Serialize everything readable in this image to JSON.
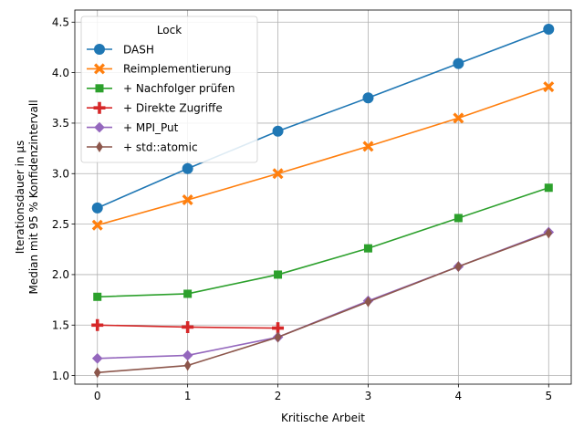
{
  "chart_data": {
    "type": "line",
    "title": "",
    "xlabel": "Kritische Arbeit",
    "ylabel_lines": [
      "Iterationsdauer in µs",
      "Median mit 95 % Konfidenzintervall"
    ],
    "xlim": [
      -0.25,
      5.25
    ],
    "ylim": [
      0.915,
      4.62
    ],
    "xticks": [
      0,
      1,
      2,
      3,
      4,
      5
    ],
    "yticks": [
      1.0,
      1.5,
      2.0,
      2.5,
      3.0,
      3.5,
      4.0,
      4.5
    ],
    "ytick_labels": [
      "1.0",
      "1.5",
      "2.0",
      "2.5",
      "3.0",
      "3.5",
      "4.0",
      "4.5"
    ],
    "grid": true,
    "legend": {
      "title": "Lock",
      "position": "top-left"
    },
    "series": [
      {
        "name": "DASH",
        "color": "#1f77b4",
        "marker": "circle",
        "x": [
          0,
          1,
          2,
          3,
          4,
          5
        ],
        "y": [
          2.66,
          3.05,
          3.42,
          3.75,
          4.09,
          4.43
        ]
      },
      {
        "name": "Reimplementierung",
        "color": "#ff7f0e",
        "marker": "x",
        "x": [
          0,
          1,
          2,
          3,
          4,
          5
        ],
        "y": [
          2.49,
          2.74,
          3.0,
          3.27,
          3.55,
          3.86
        ]
      },
      {
        "name": "+ Nachfolger prüfen",
        "color": "#2ca02c",
        "marker": "square",
        "x": [
          0,
          1,
          2,
          3,
          4,
          5
        ],
        "y": [
          1.78,
          1.81,
          2.0,
          2.26,
          2.56,
          2.86
        ]
      },
      {
        "name": "+ Direkte Zugriffe",
        "color": "#d62728",
        "marker": "plus",
        "x": [
          0,
          1,
          2
        ],
        "y": [
          1.5,
          1.48,
          1.47
        ]
      },
      {
        "name": "+ MPI_Put",
        "color": "#9467bd",
        "marker": "diamond",
        "x": [
          0,
          1,
          2,
          3,
          4,
          5
        ],
        "y": [
          1.17,
          1.2,
          1.38,
          1.74,
          2.08,
          2.42
        ]
      },
      {
        "name": "+ std::atomic",
        "color": "#8c564b",
        "marker": "thin-diamond",
        "x": [
          0,
          1,
          2,
          3,
          4,
          5
        ],
        "y": [
          1.03,
          1.1,
          1.38,
          1.73,
          2.08,
          2.41
        ]
      }
    ]
  }
}
